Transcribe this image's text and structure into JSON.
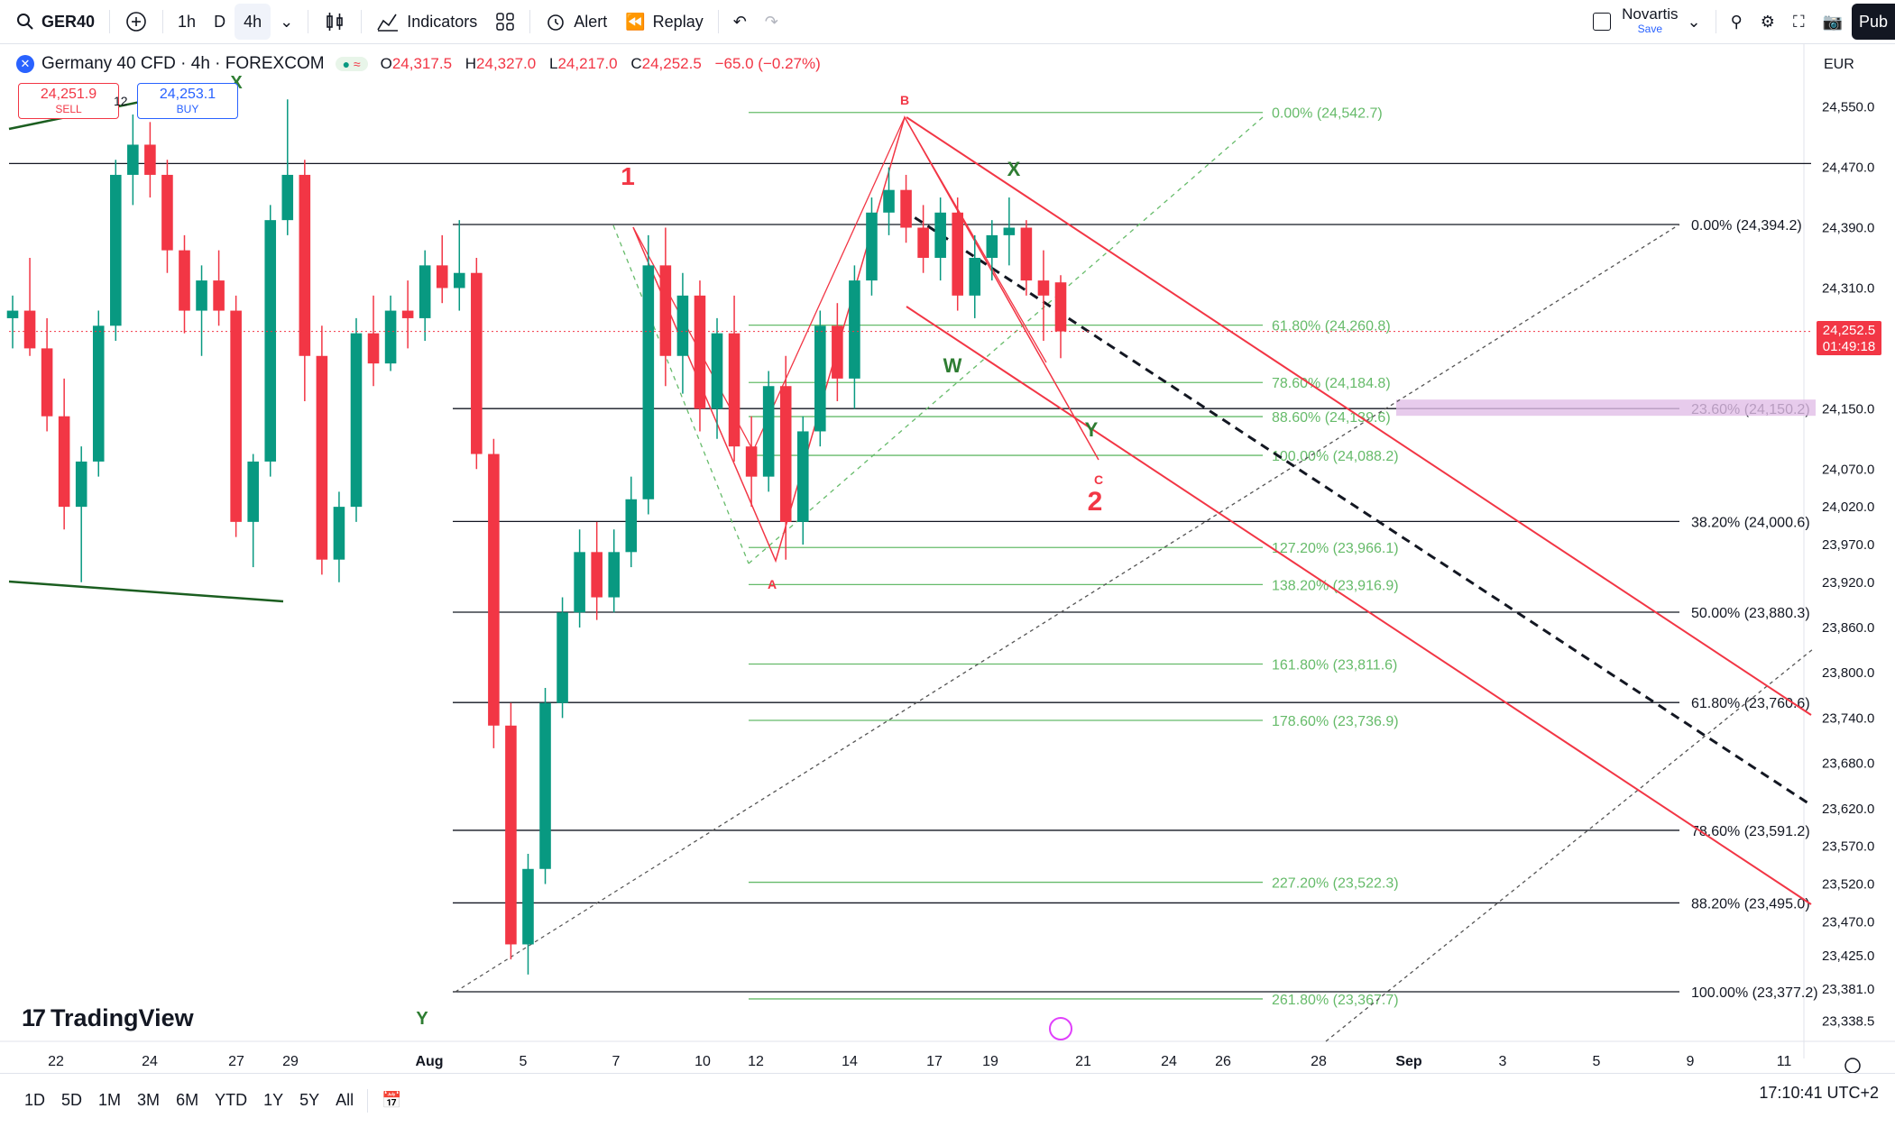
{
  "toolbar": {
    "symbol": "GER40",
    "intervals": [
      "1h",
      "D",
      "4h"
    ],
    "indicators_label": "Indicators",
    "alert_label": "Alert",
    "replay_label": "Replay",
    "layout_name": "Novartis",
    "layout_status": "Save",
    "publish_label": "Pub",
    "currency": "EUR"
  },
  "legend": {
    "title": "Germany 40 CFD · 4h · FOREXCOM",
    "o_label": "O",
    "o": "24,317.5",
    "h_label": "H",
    "h": "24,327.0",
    "l_label": "L",
    "l": "24,217.0",
    "c_label": "C",
    "c": "24,252.5",
    "change": "−65.0 (−0.27%)"
  },
  "trade": {
    "sell_price": "24,251.9",
    "sell_label": "SELL",
    "buy_price": "24,253.1",
    "buy_label": "BUY",
    "spread": "12"
  },
  "price_tag": {
    "price": "24,252.5",
    "countdown": "01:49:18"
  },
  "bottom": {
    "ranges": [
      "1D",
      "5D",
      "1M",
      "3M",
      "6M",
      "YTD",
      "1Y",
      "5Y",
      "All"
    ],
    "clock": "17:10:41 UTC+2"
  },
  "brand": "TradingView",
  "chart_data": {
    "type": "candlestick",
    "instrument": "Germany 40 CFD",
    "timeframe": "4h",
    "y_axis": {
      "ticks": [
        24550,
        24470,
        24390,
        24310,
        24150,
        24070,
        24020,
        23970,
        23920,
        23860,
        23800,
        23740,
        23680,
        23620,
        23570,
        23520,
        23470,
        23425,
        23381,
        23338.5
      ],
      "tick_labels": [
        "24,550.0",
        "24,470.0",
        "24,390.0",
        "24,310.0",
        "24,150.0",
        "24,070.0",
        "24,020.0",
        "23,970.0",
        "23,920.0",
        "23,860.0",
        "23,800.0",
        "23,740.0",
        "23,680.0",
        "23,620.0",
        "23,570.0",
        "23,520.0",
        "23,470.0",
        "23,425.0",
        "23,381.0",
        "23,338.5"
      ],
      "range": [
        23310,
        24610
      ]
    },
    "x_axis": {
      "tick_labels": [
        "22",
        "24",
        "27",
        "29",
        "Aug",
        "5",
        "7",
        "10",
        "12",
        "14",
        "17",
        "19",
        "21",
        "24",
        "26",
        "28",
        "Sep",
        "3",
        "5",
        "9",
        "11"
      ]
    },
    "candles_approx": [
      [
        24270,
        24300,
        24230,
        24280
      ],
      [
        24280,
        24350,
        24220,
        24230
      ],
      [
        24230,
        24270,
        24120,
        24140
      ],
      [
        24140,
        24190,
        23990,
        24020
      ],
      [
        24020,
        24100,
        23920,
        24080
      ],
      [
        24080,
        24280,
        24060,
        24260
      ],
      [
        24260,
        24480,
        24240,
        24460
      ],
      [
        24460,
        24540,
        24420,
        24500
      ],
      [
        24500,
        24530,
        24430,
        24460
      ],
      [
        24460,
        24480,
        24330,
        24360
      ],
      [
        24360,
        24380,
        24250,
        24280
      ],
      [
        24280,
        24340,
        24220,
        24320
      ],
      [
        24320,
        24360,
        24260,
        24280
      ],
      [
        24280,
        24300,
        23980,
        24000
      ],
      [
        24000,
        24090,
        23940,
        24080
      ],
      [
        24080,
        24420,
        24060,
        24400
      ],
      [
        24400,
        24560,
        24380,
        24460
      ],
      [
        24460,
        24480,
        24160,
        24220
      ],
      [
        24220,
        24260,
        23930,
        23950
      ],
      [
        23950,
        24040,
        23920,
        24020
      ],
      [
        24020,
        24270,
        24000,
        24250
      ],
      [
        24250,
        24300,
        24180,
        24210
      ],
      [
        24210,
        24300,
        24200,
        24280
      ],
      [
        24280,
        24320,
        24230,
        24270
      ],
      [
        24270,
        24360,
        24240,
        24340
      ],
      [
        24340,
        24380,
        24290,
        24310
      ],
      [
        24310,
        24400,
        24280,
        24330
      ],
      [
        24330,
        24350,
        24070,
        24090
      ],
      [
        24090,
        24110,
        23700,
        23730
      ],
      [
        23730,
        23760,
        23420,
        23440
      ],
      [
        23440,
        23560,
        23400,
        23540
      ],
      [
        23540,
        23780,
        23520,
        23760
      ],
      [
        23760,
        23900,
        23740,
        23880
      ],
      [
        23880,
        23990,
        23860,
        23960
      ],
      [
        23960,
        24000,
        23870,
        23900
      ],
      [
        23900,
        23990,
        23880,
        23960
      ],
      [
        23960,
        24060,
        23940,
        24030
      ],
      [
        24030,
        24380,
        24010,
        24340
      ],
      [
        24340,
        24390,
        24180,
        24220
      ],
      [
        24220,
        24330,
        24170,
        24300
      ],
      [
        24300,
        24320,
        24120,
        24150
      ],
      [
        24150,
        24270,
        24110,
        24250
      ],
      [
        24250,
        24300,
        24080,
        24100
      ],
      [
        24100,
        24140,
        24020,
        24060
      ],
      [
        24060,
        24200,
        24040,
        24180
      ],
      [
        24180,
        24220,
        23950,
        24000
      ],
      [
        24000,
        24140,
        23970,
        24120
      ],
      [
        24120,
        24280,
        24100,
        24260
      ],
      [
        24260,
        24290,
        24160,
        24190
      ],
      [
        24190,
        24340,
        24150,
        24320
      ],
      [
        24320,
        24430,
        24300,
        24410
      ],
      [
        24410,
        24470,
        24380,
        24440
      ],
      [
        24440,
        24460,
        24370,
        24390
      ],
      [
        24390,
        24420,
        24330,
        24350
      ],
      [
        24350,
        24430,
        24320,
        24410
      ],
      [
        24410,
        24430,
        24280,
        24300
      ],
      [
        24300,
        24380,
        24270,
        24350
      ],
      [
        24350,
        24400,
        24320,
        24380
      ],
      [
        24380,
        24430,
        24340,
        24390
      ],
      [
        24390,
        24400,
        24300,
        24320
      ],
      [
        24320,
        24360,
        24240,
        24300
      ],
      [
        24317.5,
        24327,
        24217,
        24252.5
      ]
    ],
    "current_price": 24252.5,
    "fib_levels_right": [
      {
        "label": "0.00% (24,394.2)",
        "price": 24394.2
      },
      {
        "label": "23.60% (24,150.2)",
        "price": 24150.2
      },
      {
        "label": "38.20% (24,000.6)",
        "price": 24000.6
      },
      {
        "label": "50.00% (23,880.3)",
        "price": 23880.3
      },
      {
        "label": "61.80% (23,760.6)",
        "price": 23760.6
      },
      {
        "label": "78.60% (23,591.2)",
        "price": 23591.2
      },
      {
        "label": "88.20% (23,495.0)",
        "price": 23495.0
      },
      {
        "label": "100.00% (23,377.2)",
        "price": 23377.2
      }
    ],
    "fib_levels_green": [
      {
        "label": "0.00% (24,542.7)",
        "price": 24542.7
      },
      {
        "label": "61.80% (24,260.8)",
        "price": 24260.8
      },
      {
        "label": "78.60% (24,184.8)",
        "price": 24184.8
      },
      {
        "label": "88.60% (24,139.6)",
        "price": 24139.6
      },
      {
        "label": "100.00% (24,088.2)",
        "price": 24088.2
      },
      {
        "label": "127.20% (23,966.1)",
        "price": 23966.1
      },
      {
        "label": "138.20% (23,916.9)",
        "price": 23916.9
      },
      {
        "label": "161.80% (23,811.6)",
        "price": 23811.6
      },
      {
        "label": "178.60% (23,736.9)",
        "price": 23736.9
      },
      {
        "label": "227.20% (23,522.3)",
        "price": 23522.3
      },
      {
        "label": "261.80% (23,367.7)",
        "price": 23367.7
      }
    ],
    "horizontal_line": 24475,
    "wave_labels": [
      {
        "text": "1",
        "color": "#f23645"
      },
      {
        "text": "2",
        "color": "#f23645"
      },
      {
        "text": "B",
        "color": "#f23645"
      },
      {
        "text": "A",
        "color": "#f23645"
      },
      {
        "text": "C",
        "color": "#f23645"
      },
      {
        "text": "X",
        "color": "#2e7d32"
      },
      {
        "text": "X",
        "color": "#2e7d32"
      },
      {
        "text": "W",
        "color": "#2e7d32"
      },
      {
        "text": "Y",
        "color": "#2e7d32"
      },
      {
        "text": "Y",
        "color": "#2e7d32"
      }
    ],
    "colors": {
      "up": "#089981",
      "down": "#f23645",
      "fib_green": "#66bb6a",
      "channel": "#f23645",
      "highlight": "#e1bee7"
    }
  }
}
